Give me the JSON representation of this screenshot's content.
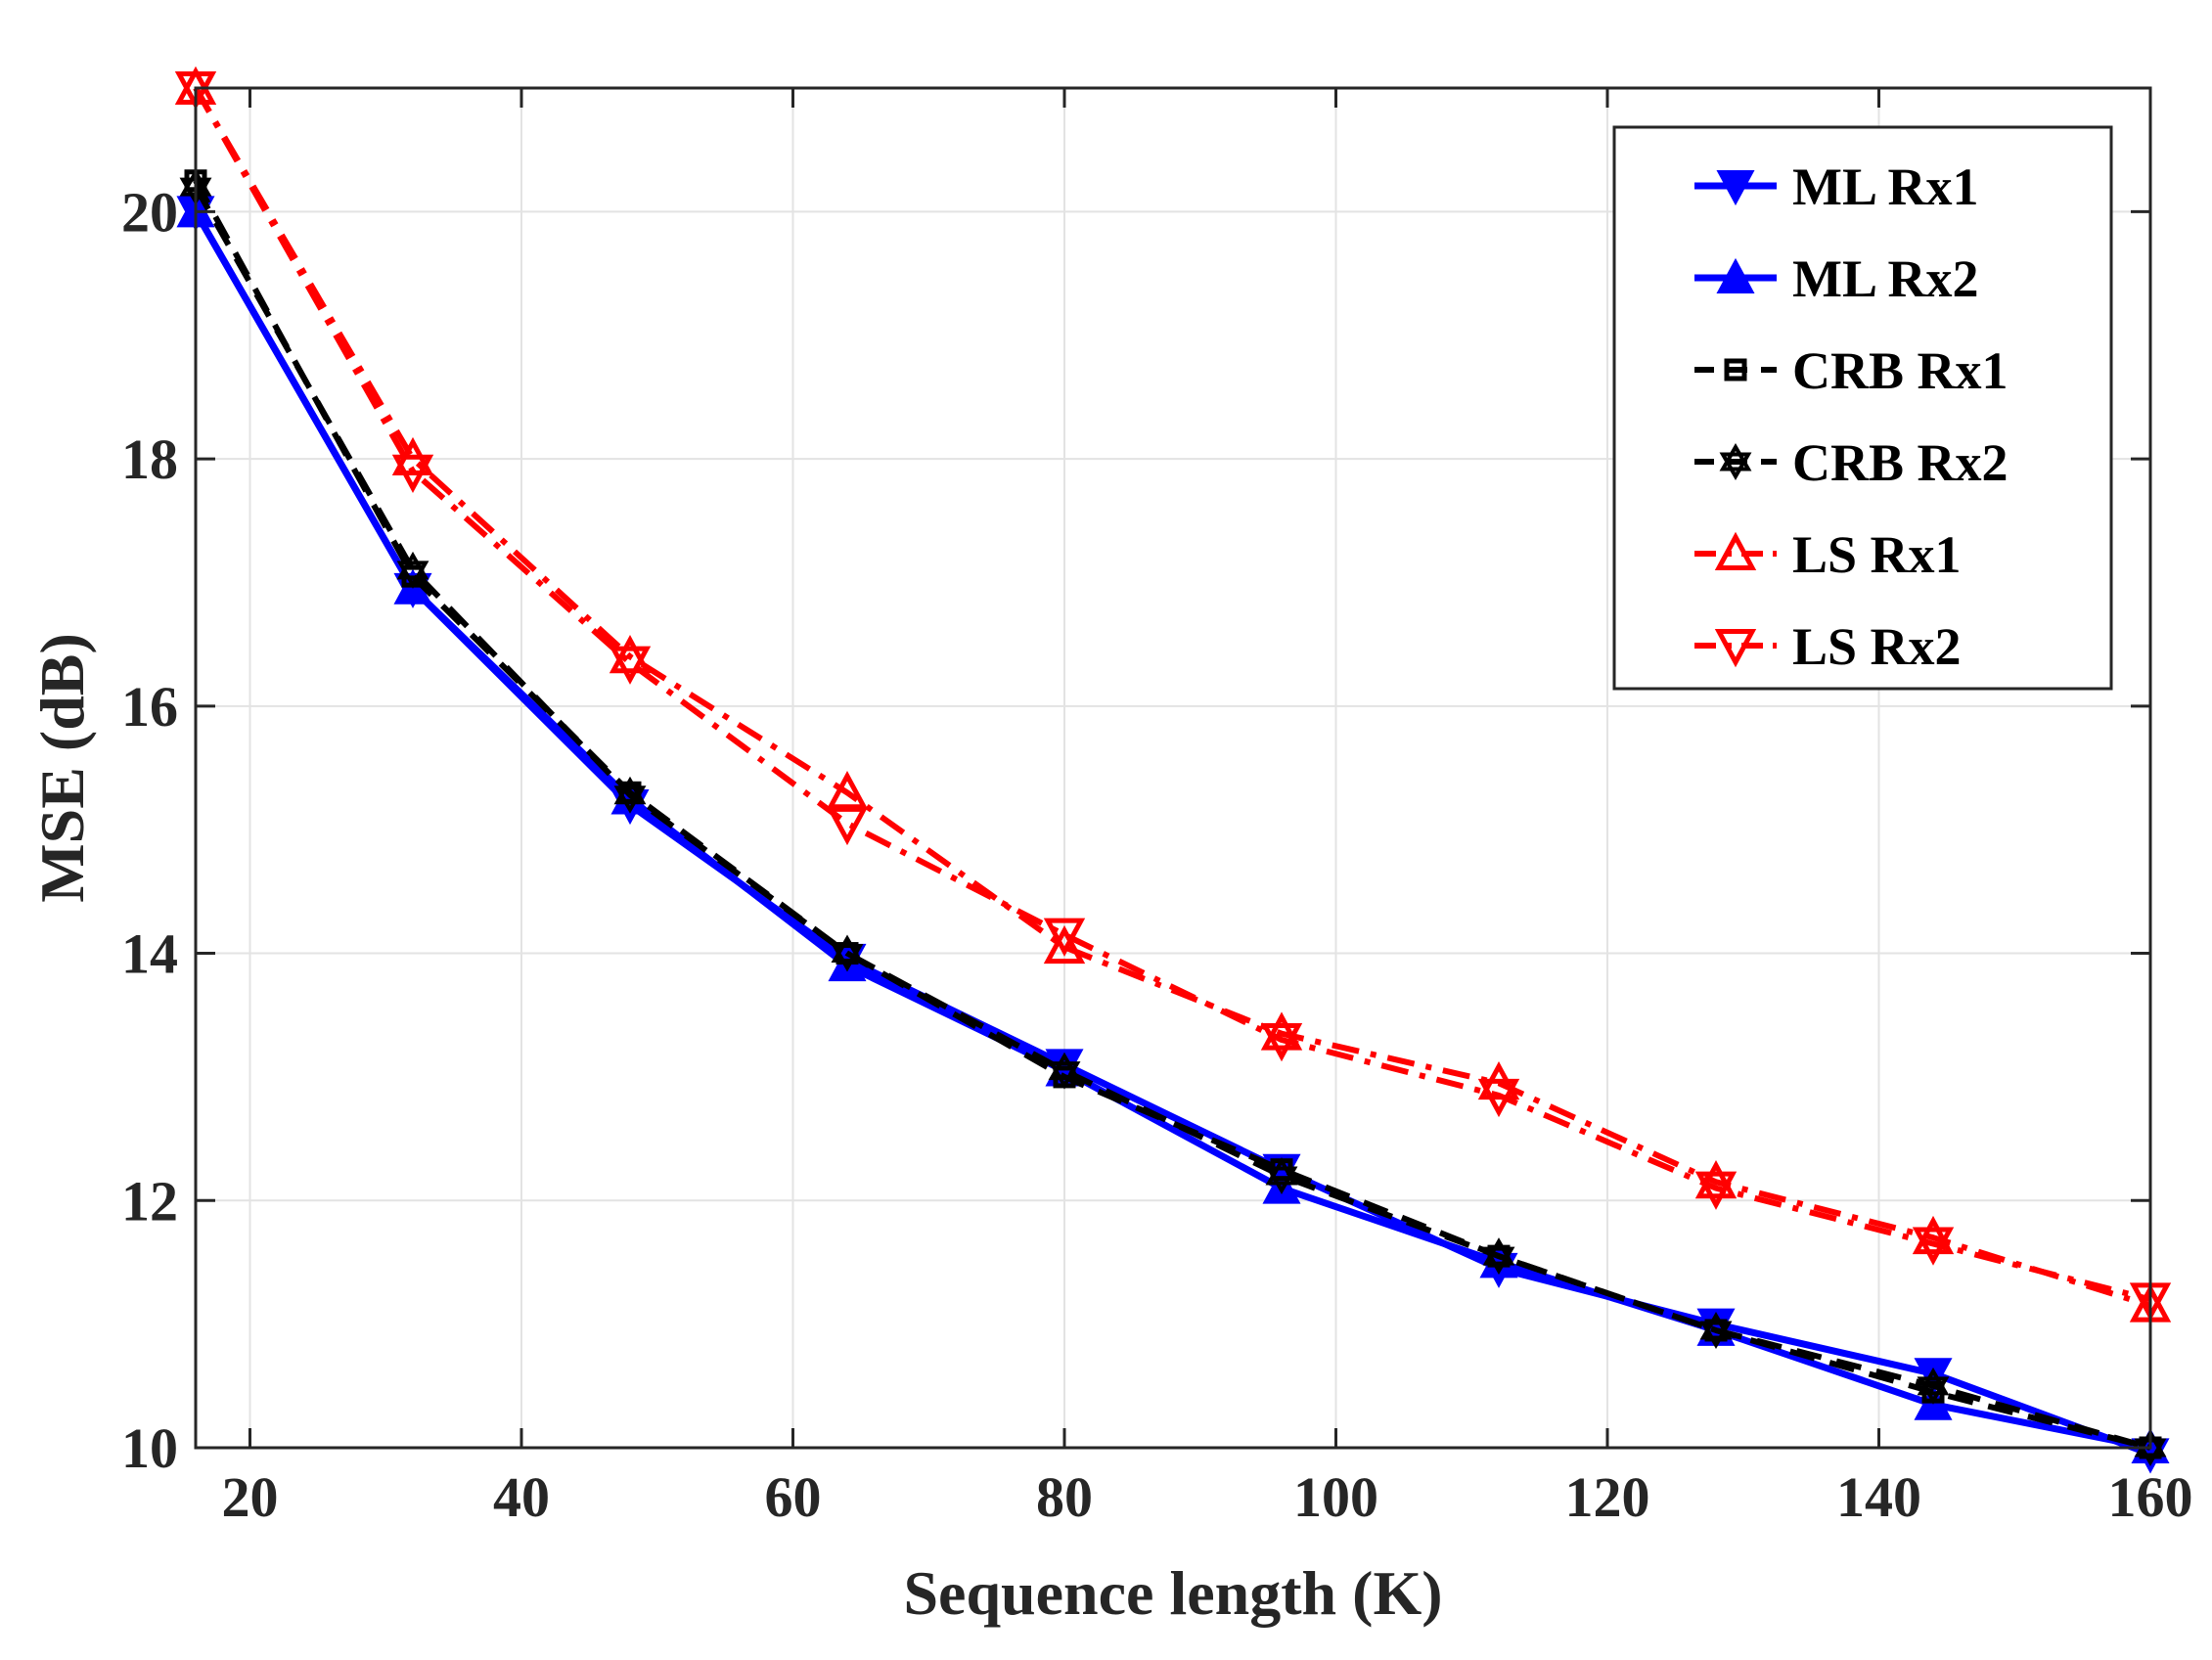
{
  "chart_data": {
    "type": "line",
    "title": "",
    "xlabel": "Sequence length (K)",
    "ylabel": "MSE (dB)",
    "xlim": [
      16,
      160
    ],
    "ylim": [
      10,
      21
    ],
    "xticks": [
      20,
      40,
      60,
      80,
      100,
      120,
      140,
      160
    ],
    "yticks": [
      10,
      12,
      14,
      16,
      18,
      20
    ],
    "grid": true,
    "legend_position": "top-right",
    "x": [
      16,
      32,
      48,
      64,
      80,
      96,
      112,
      128,
      144,
      160
    ],
    "series": [
      {
        "name": "ML Rx1",
        "color": "#0000ff",
        "line_style": "solid",
        "marker": "triangle-down-filled",
        "values": [
          20.0,
          16.95,
          15.2,
          13.95,
          13.1,
          12.25,
          11.45,
          11.0,
          10.6,
          9.95
        ]
      },
      {
        "name": "ML Rx2",
        "color": "#0000ff",
        "line_style": "solid",
        "marker": "triangle-up-filled",
        "values": [
          20.0,
          16.95,
          15.25,
          13.9,
          13.05,
          12.1,
          11.5,
          10.95,
          10.35,
          10.0
        ]
      },
      {
        "name": "CRB Rx1",
        "color": "#000000",
        "line_style": "dashed",
        "marker": "square",
        "values": [
          20.25,
          17.05,
          15.3,
          14.0,
          13.0,
          12.25,
          11.55,
          10.95,
          10.45,
          10.0
        ]
      },
      {
        "name": "CRB Rx2",
        "color": "#000000",
        "line_style": "dashed",
        "marker": "hexagram",
        "values": [
          20.2,
          17.1,
          15.28,
          14.0,
          13.05,
          12.2,
          11.55,
          10.95,
          10.5,
          10.0
        ]
      },
      {
        "name": "LS Rx1",
        "color": "#ff0000",
        "line_style": "dashdot",
        "marker": "triangle-up-open",
        "values": [
          21.0,
          18.0,
          16.4,
          15.3,
          14.05,
          13.35,
          12.95,
          12.15,
          11.7,
          11.15
        ]
      },
      {
        "name": "LS Rx2",
        "color": "#ff0000",
        "line_style": "dashdot",
        "marker": "triangle-down-open",
        "values": [
          21.0,
          17.9,
          16.35,
          15.05,
          14.15,
          13.3,
          12.85,
          12.1,
          11.65,
          11.2
        ]
      }
    ]
  }
}
